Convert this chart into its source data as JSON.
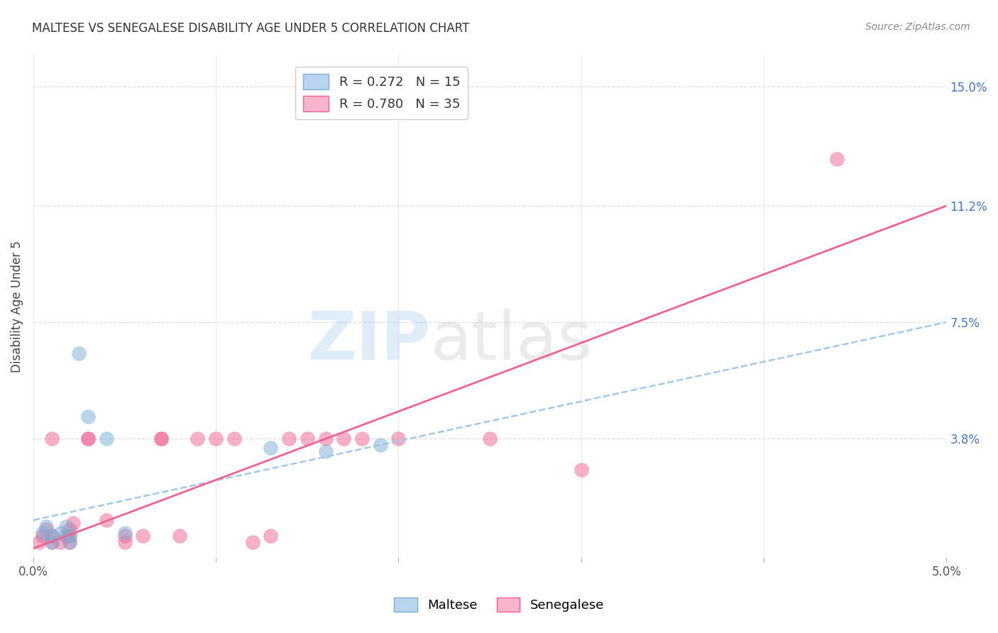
{
  "title": "MALTESE VS SENEGALESE DISABILITY AGE UNDER 5 CORRELATION CHART",
  "source": "Source: ZipAtlas.com",
  "ylabel": "Disability Age Under 5",
  "xlim": [
    0.0,
    0.05
  ],
  "ylim": [
    0.0,
    0.16
  ],
  "xticks": [
    0.0,
    0.01,
    0.02,
    0.03,
    0.04,
    0.05
  ],
  "xtick_labels": [
    "0.0%",
    "",
    "",
    "",
    "",
    "5.0%"
  ],
  "ytick_labels_right": [
    "3.8%",
    "7.5%",
    "11.2%",
    "15.0%"
  ],
  "ytick_vals_right": [
    0.038,
    0.075,
    0.112,
    0.15
  ],
  "maltese_color": "#7bafd4",
  "senegalese_color": "#f06292",
  "maltese_x": [
    0.0005,
    0.0007,
    0.001,
    0.001,
    0.0015,
    0.0018,
    0.002,
    0.002,
    0.0025,
    0.003,
    0.004,
    0.005,
    0.013,
    0.016,
    0.019
  ],
  "maltese_y": [
    0.008,
    0.01,
    0.005,
    0.007,
    0.008,
    0.01,
    0.005,
    0.007,
    0.065,
    0.045,
    0.038,
    0.008,
    0.035,
    0.034,
    0.036
  ],
  "senegalese_x": [
    0.0003,
    0.0005,
    0.0007,
    0.001,
    0.001,
    0.001,
    0.0015,
    0.0018,
    0.002,
    0.002,
    0.002,
    0.0022,
    0.003,
    0.003,
    0.004,
    0.005,
    0.005,
    0.006,
    0.007,
    0.007,
    0.008,
    0.009,
    0.01,
    0.011,
    0.012,
    0.013,
    0.014,
    0.015,
    0.016,
    0.017,
    0.018,
    0.02,
    0.025,
    0.03,
    0.044
  ],
  "senegalese_y": [
    0.005,
    0.007,
    0.009,
    0.005,
    0.007,
    0.038,
    0.005,
    0.007,
    0.005,
    0.007,
    0.009,
    0.011,
    0.038,
    0.038,
    0.012,
    0.005,
    0.007,
    0.007,
    0.038,
    0.038,
    0.007,
    0.038,
    0.038,
    0.038,
    0.005,
    0.007,
    0.038,
    0.038,
    0.038,
    0.038,
    0.038,
    0.038,
    0.038,
    0.028,
    0.127
  ],
  "maltese_trend_x": [
    0.0,
    0.05
  ],
  "maltese_trend_y": [
    0.012,
    0.075
  ],
  "senegalese_trend_x": [
    0.0,
    0.05
  ],
  "senegalese_trend_y": [
    0.003,
    0.112
  ],
  "watermark_zip": "ZIP",
  "watermark_atlas": "atlas",
  "background_color": "#ffffff",
  "grid_color": "#dddddd",
  "title_fontsize": 12,
  "source_fontsize": 10,
  "axis_label_fontsize": 12,
  "tick_fontsize": 12,
  "legend_fontsize": 13
}
